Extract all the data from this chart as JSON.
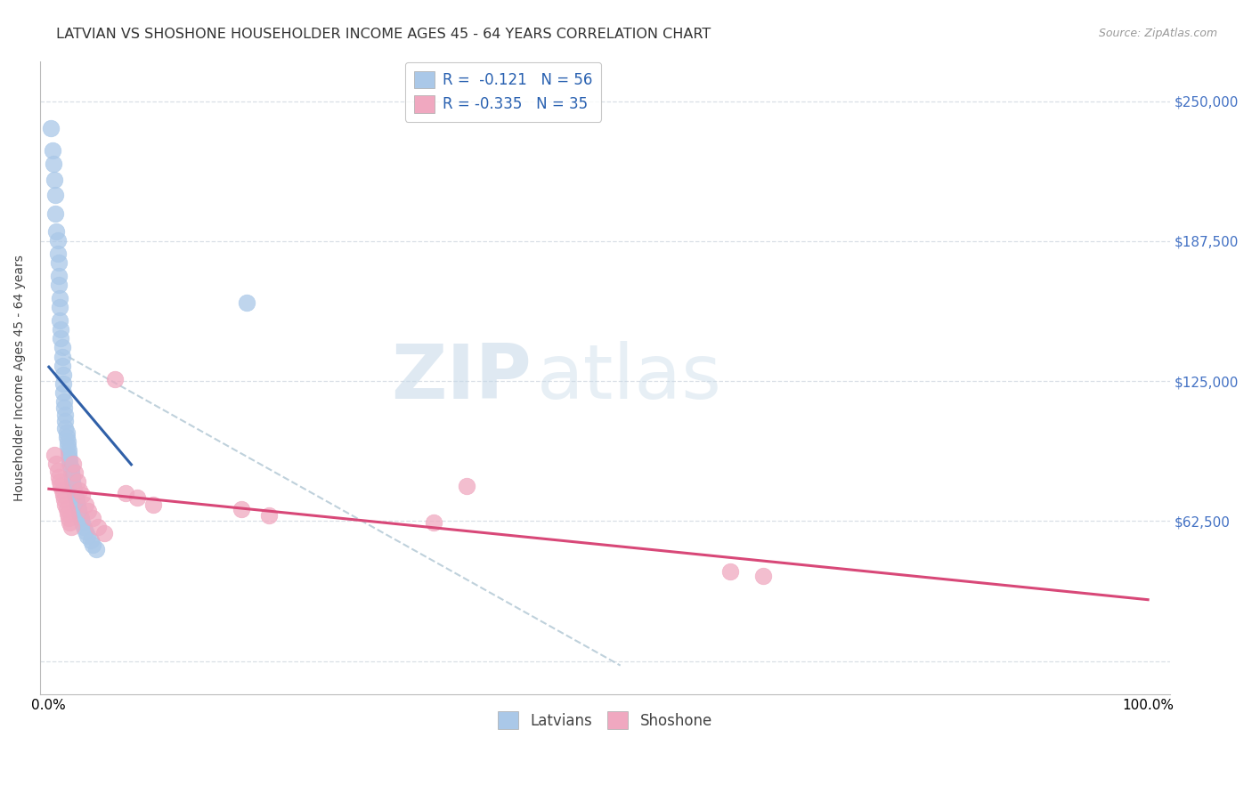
{
  "title": "LATVIAN VS SHOSHONE HOUSEHOLDER INCOME AGES 45 - 64 YEARS CORRELATION CHART",
  "source": "Source: ZipAtlas.com",
  "ylabel": "Householder Income Ages 45 - 64 years",
  "watermark_zip": "ZIP",
  "watermark_atlas": "atlas",
  "latvian_R": -0.121,
  "latvian_N": 56,
  "shoshone_R": -0.335,
  "shoshone_N": 35,
  "latvian_color": "#aac8e8",
  "latvian_line_color": "#3060a8",
  "shoshone_color": "#f0a8c0",
  "shoshone_line_color": "#d84878",
  "dashed_line_color": "#b8ccd8",
  "yticks": [
    0,
    62500,
    125000,
    187500,
    250000
  ],
  "ytick_labels": [
    "",
    "$62,500",
    "$125,000",
    "$187,500",
    "$250,000"
  ],
  "xlim": [
    -0.008,
    1.02
  ],
  "ylim": [
    -15000,
    268000
  ],
  "latvian_x": [
    0.002,
    0.003,
    0.004,
    0.005,
    0.006,
    0.006,
    0.007,
    0.008,
    0.008,
    0.009,
    0.009,
    0.009,
    0.01,
    0.01,
    0.01,
    0.011,
    0.011,
    0.012,
    0.012,
    0.012,
    0.013,
    0.013,
    0.013,
    0.014,
    0.014,
    0.015,
    0.015,
    0.015,
    0.016,
    0.016,
    0.017,
    0.017,
    0.018,
    0.018,
    0.019,
    0.019,
    0.02,
    0.02,
    0.021,
    0.021,
    0.022,
    0.023,
    0.024,
    0.025,
    0.026,
    0.027,
    0.028,
    0.029,
    0.03,
    0.032,
    0.033,
    0.035,
    0.038,
    0.04,
    0.043,
    0.18
  ],
  "latvian_y": [
    238000,
    228000,
    222000,
    215000,
    208000,
    200000,
    192000,
    188000,
    182000,
    178000,
    172000,
    168000,
    162000,
    158000,
    152000,
    148000,
    144000,
    140000,
    136000,
    132000,
    128000,
    124000,
    120000,
    116000,
    113000,
    110000,
    107000,
    104000,
    102000,
    100000,
    98000,
    96000,
    94000,
    92000,
    90000,
    88000,
    86000,
    84000,
    82000,
    80000,
    78000,
    76000,
    74000,
    72000,
    70000,
    68000,
    66000,
    64000,
    62000,
    60000,
    58000,
    56000,
    54000,
    52000,
    50000,
    160000
  ],
  "shoshone_x": [
    0.005,
    0.007,
    0.008,
    0.009,
    0.01,
    0.011,
    0.012,
    0.013,
    0.014,
    0.015,
    0.016,
    0.017,
    0.018,
    0.019,
    0.02,
    0.022,
    0.024,
    0.026,
    0.028,
    0.03,
    0.033,
    0.036,
    0.04,
    0.045,
    0.05,
    0.06,
    0.07,
    0.08,
    0.095,
    0.175,
    0.2,
    0.35,
    0.38,
    0.62,
    0.65
  ],
  "shoshone_y": [
    92000,
    88000,
    85000,
    82000,
    80000,
    78000,
    76000,
    74000,
    72000,
    70000,
    68000,
    66000,
    64000,
    62000,
    60000,
    88000,
    84000,
    80000,
    76000,
    74000,
    70000,
    67000,
    64000,
    60000,
    57000,
    126000,
    75000,
    73000,
    70000,
    68000,
    65000,
    62000,
    78000,
    40000,
    38000
  ],
  "background_color": "#ffffff",
  "grid_color": "#d0d8e0",
  "title_fontsize": 11.5,
  "axis_label_fontsize": 10,
  "tick_fontsize": 10,
  "legend_fontsize": 12
}
